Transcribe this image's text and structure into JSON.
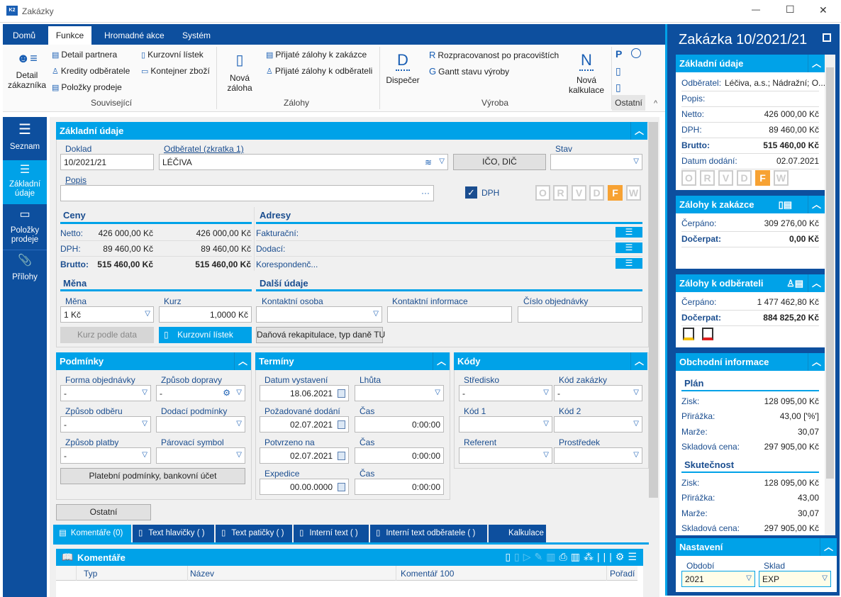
{
  "window": {
    "title": "Zakázky",
    "minimize": "—",
    "maximize": "☐",
    "close": "✕"
  },
  "ribbon": {
    "tabs": [
      "Domů",
      "Funkce",
      "Hromadné akce",
      "Systém"
    ],
    "active_tab": "Funkce",
    "groups": {
      "souvisejici": "Související",
      "zalohy": "Zálohy",
      "vyroba": "Výroba",
      "ostatni": "Ostatní"
    },
    "items": {
      "detail_zakaznika_1": "Detail",
      "detail_zakaznika_2": "zákazníka",
      "detail_partnera": "Detail partnera",
      "kredity": "Kredity odběratele",
      "polozky": "Položky prodeje",
      "kurzovni": "Kurzovní lístek",
      "kontejner": "Kontejner zboží",
      "nova_zaloha_1": "Nová",
      "nova_zaloha_2": "záloha",
      "prijate_zakazka": "Přijaté zálohy k zakázce",
      "prijate_odberatel": "Přijaté zálohy k odběrateli",
      "dispecer": "Dispečer",
      "rozpracovanost": "Rozpracovanost po pracovištích",
      "gantt": "Gantt stavu výroby",
      "nova_kalkulace_1": "Nová",
      "nova_kalkulace_2": "kalkulace"
    }
  },
  "sidebar": {
    "items": [
      {
        "label": "Seznam"
      },
      {
        "label": "Základní údaje"
      },
      {
        "label": "Položky prodeje"
      },
      {
        "label": "Přílohy"
      }
    ]
  },
  "main": {
    "zakladni": {
      "title": "Základní údaje",
      "doklad_label": "Doklad",
      "doklad": "10/2021/21",
      "odberatel_label": "Odběratel (zkratka 1)",
      "odberatel": "LÉČIVA",
      "ico_button": "IČO, DIČ",
      "stav_label": "Stav",
      "stav": "",
      "popis_label": "Popis",
      "popis": "",
      "popis_more": "···",
      "dph_label": "DPH",
      "dph_checked": true,
      "flags": [
        "O",
        "R",
        "V",
        "D",
        "F",
        "W"
      ],
      "active_flag": "F"
    },
    "ceny": {
      "title": "Ceny",
      "netto_label": "Netto:",
      "netto1": "426 000,00 Kč",
      "netto2": "426 000,00 Kč",
      "dph_label": "DPH:",
      "dph1": "89 460,00 Kč",
      "dph2": "89 460,00 Kč",
      "brutto_label": "Brutto:",
      "brutto1": "515 460,00 Kč",
      "brutto2": "515 460,00 Kč"
    },
    "adresy": {
      "title": "Adresy",
      "items": [
        "Fakturační:",
        "Dodací:",
        "Korespondenč..."
      ]
    },
    "mena": {
      "title": "Měna",
      "mena_label": "Měna",
      "mena": "1 Kč",
      "kurz_label": "Kurz",
      "kurz": "1,0000 Kč",
      "kurz_podle_data": "Kurz podle data",
      "kurzovni_listek": "Kurzovní lístek"
    },
    "dalsi": {
      "title": "Další údaje",
      "kontaktni_osoba": "Kontaktní osoba",
      "kontaktni_informace": "Kontaktní informace",
      "cislo_objednavky": "Číslo objednávky",
      "danova": "Daňová rekapitulace, typ daně TU"
    },
    "podminky": {
      "title": "Podmínky",
      "forma_label": "Forma objednávky",
      "forma": "-",
      "doprava_label": "Způsob dopravy",
      "doprava": "-",
      "odber_label": "Způsob odběru",
      "odber": "-",
      "dodaci_label": "Dodací podmínky",
      "dodaci": "",
      "platba_label": "Způsob platby",
      "platba": "-",
      "parovaci_label": "Párovací symbol",
      "parovaci": "",
      "platebni_button": "Platební podmínky, bankovní účet"
    },
    "terminy": {
      "title": "Termíny",
      "vystaveni_label": "Datum vystavení",
      "vystaveni": "18.06.2021",
      "lhuta_label": "Lhůta",
      "lhuta": "",
      "pozadovane_label": "Požadované dodání",
      "pozadovane": "02.07.2021",
      "cas_label": "Čas",
      "cas1": "0:00:00",
      "potvrzeno_label": "Potvrzeno na",
      "potvrzeno": "02.07.2021",
      "cas2": "0:00:00",
      "expedice_label": "Expedice",
      "expedice": "00.00.0000",
      "cas3": "0:00:00"
    },
    "kody": {
      "title": "Kódy",
      "stredisko_label": "Středisko",
      "stredisko": "-",
      "kod_zakazky_label": "Kód zakázky",
      "kod_zakazky": "-",
      "kod1_label": "Kód 1",
      "kod2_label": "Kód 2",
      "referent_label": "Referent",
      "prostredek_label": "Prostředek"
    },
    "ostatni_button": "Ostatní",
    "tabs": [
      "Komentáře (0)",
      "Text hlavičky ( )",
      "Text patičky ( )",
      "Interní text ( )",
      "Interní text odběratele ( )",
      "Kalkulace"
    ],
    "komentare": {
      "title": "Komentáře",
      "columns": [
        "Typ",
        "Název",
        "Komentář 100",
        "Pořadí"
      ]
    }
  },
  "right": {
    "title": "Zakázka 10/2021/21",
    "zakladni": {
      "title": "Základní údaje",
      "odberatel_label": "Odběratel:",
      "odberatel": "Léčiva, a.s.; Nádražní; O...",
      "popis_label": "Popis:",
      "netto_label": "Netto:",
      "netto": "426 000,00 Kč",
      "dph_label": "DPH:",
      "dph": "89 460,00 Kč",
      "brutto_label": "Brutto:",
      "brutto": "515 460,00 Kč",
      "datum_label": "Datum dodání:",
      "datum": "02.07.2021"
    },
    "zalohy_zakazka": {
      "title": "Zálohy k zakázce",
      "cerpano_label": "Čerpáno:",
      "cerpano": "309 276,00 Kč",
      "docerpat_label": "Dočerpat:",
      "docerpat": "0,00 Kč"
    },
    "zalohy_odberatel": {
      "title": "Zálohy k odběrateli",
      "cerpano_label": "Čerpáno:",
      "cerpano": "1 477 462,80 Kč",
      "docerpat_label": "Dočerpat:",
      "docerpat": "884 825,20 Kč"
    },
    "obchodni": {
      "title": "Obchodní informace",
      "plan": "Plán",
      "skutecnost": "Skutečnost",
      "plan_rows": [
        {
          "l": "Zisk:",
          "v": "128 095,00 Kč"
        },
        {
          "l": "Přirážka:",
          "v": "43,00 ['%']"
        },
        {
          "l": "Marže:",
          "v": "30,07"
        },
        {
          "l": "Skladová cena:",
          "v": "297 905,00 Kč"
        }
      ],
      "skut_rows": [
        {
          "l": "Zisk:",
          "v": "128 095,00 Kč"
        },
        {
          "l": "Přirážka:",
          "v": "43,00"
        },
        {
          "l": "Marže:",
          "v": "30,07"
        },
        {
          "l": "Skladová cena:",
          "v": "297 905,00 Kč"
        }
      ]
    },
    "nastaveni": {
      "title": "Nastavení",
      "obdobi_label": "Období",
      "obdobi": "2021",
      "sklad_label": "Sklad",
      "sklad": "EXP"
    }
  },
  "colors": {
    "ribbon_blue": "#0d4f9e",
    "section_cyan": "#00a2e8",
    "flag_active": "#f7a233",
    "label_blue": "#1a4d8f"
  }
}
